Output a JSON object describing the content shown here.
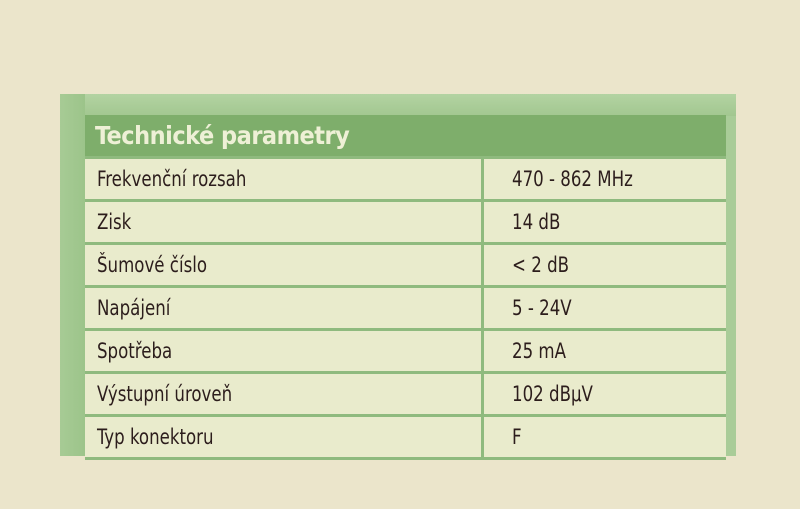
{
  "table": {
    "title": "Technické parametry",
    "rows": [
      {
        "label": "Frekvenční rozsah",
        "value": "470 -  862 MHz"
      },
      {
        "label": "Zisk",
        "value": "14 dB"
      },
      {
        "label": "Šumové číslo",
        "value": "< 2 dB"
      },
      {
        "label": "Napájení",
        "value": "5 - 24V"
      },
      {
        "label": "Spotřeba",
        "value": "25 mA"
      },
      {
        "label": "Výstupní úroveň",
        "value": "102 dBμV"
      },
      {
        "label": "Typ konektoru",
        "value": "F"
      }
    ]
  },
  "colors": {
    "header": "#7eae6b",
    "frame": "#a9cc98",
    "cell": "#e9ebcc",
    "background": "#ebe5cb"
  }
}
